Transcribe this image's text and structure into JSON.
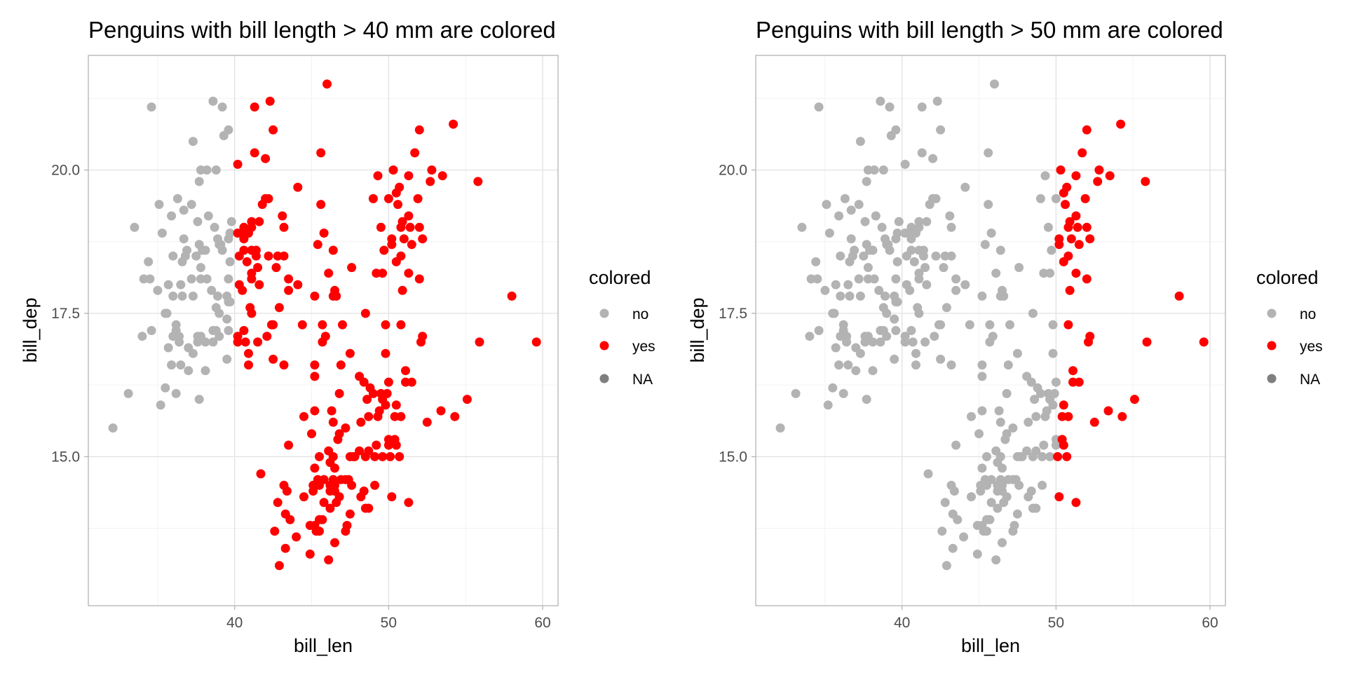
{
  "chart_data": [
    {
      "type": "scatter",
      "title": "Penguins with bill length > 40 mm are colored",
      "xlabel": "bill_len",
      "ylabel": "bill_dep",
      "xlim": [
        30.5,
        61
      ],
      "ylim": [
        12.4,
        22
      ],
      "x_ticks": [
        40,
        50,
        60
      ],
      "y_ticks": [
        15.0,
        17.5,
        20.0
      ],
      "x_tick_labels": [
        "40",
        "50",
        "60"
      ],
      "y_tick_labels": [
        "15.0",
        "17.5",
        "20.0"
      ],
      "grid": true,
      "legend": {
        "title": "colored",
        "position": "right",
        "entries": [
          {
            "label": "no",
            "color": "#b3b3b3"
          },
          {
            "label": "yes",
            "color": "#ff0000"
          },
          {
            "label": "NA",
            "color": "#7f7f7f"
          }
        ]
      },
      "threshold": 40,
      "colors": {
        "no": "#b3b3b3",
        "yes": "#ff0000"
      },
      "points": [
        [
          32.1,
          15.5
        ],
        [
          33.1,
          16.1
        ],
        [
          33.5,
          19.0
        ],
        [
          34.0,
          17.1
        ],
        [
          34.1,
          18.1
        ],
        [
          34.4,
          18.4
        ],
        [
          34.5,
          18.1
        ],
        [
          34.6,
          17.2
        ],
        [
          34.6,
          21.1
        ],
        [
          35.0,
          17.9
        ],
        [
          35.1,
          19.4
        ],
        [
          35.2,
          15.9
        ],
        [
          35.3,
          18.9
        ],
        [
          35.5,
          16.2
        ],
        [
          35.5,
          17.5
        ],
        [
          35.6,
          17.5
        ],
        [
          35.7,
          16.9
        ],
        [
          35.7,
          18.0
        ],
        [
          35.9,
          16.6
        ],
        [
          35.9,
          19.2
        ],
        [
          36.0,
          17.1
        ],
        [
          36.0,
          17.8
        ],
        [
          36.0,
          18.5
        ],
        [
          36.2,
          16.1
        ],
        [
          36.2,
          17.2
        ],
        [
          36.2,
          17.3
        ],
        [
          36.3,
          19.5
        ],
        [
          36.4,
          17.0
        ],
        [
          36.4,
          17.1
        ],
        [
          36.5,
          16.6
        ],
        [
          36.5,
          18.0
        ],
        [
          36.6,
          17.8
        ],
        [
          36.6,
          18.4
        ],
        [
          36.7,
          18.8
        ],
        [
          36.7,
          19.3
        ],
        [
          36.8,
          18.5
        ],
        [
          36.9,
          18.6
        ],
        [
          37.0,
          16.5
        ],
        [
          37.0,
          16.9
        ],
        [
          37.2,
          18.1
        ],
        [
          37.2,
          19.4
        ],
        [
          37.3,
          16.8
        ],
        [
          37.3,
          17.8
        ],
        [
          37.3,
          20.5
        ],
        [
          37.5,
          18.5
        ],
        [
          37.6,
          17.0
        ],
        [
          37.6,
          17.1
        ],
        [
          37.6,
          19.1
        ],
        [
          37.7,
          16.0
        ],
        [
          37.7,
          18.7
        ],
        [
          37.7,
          19.8
        ],
        [
          37.8,
          17.1
        ],
        [
          37.8,
          18.1
        ],
        [
          37.8,
          18.3
        ],
        [
          37.8,
          20.0
        ],
        [
          37.9,
          18.6
        ],
        [
          38.1,
          16.5
        ],
        [
          38.1,
          17.0
        ],
        [
          38.1,
          18.6
        ],
        [
          38.2,
          18.1
        ],
        [
          38.2,
          20.0
        ],
        [
          38.3,
          19.2
        ],
        [
          38.5,
          17.9
        ],
        [
          38.6,
          17.0
        ],
        [
          38.6,
          17.2
        ],
        [
          38.6,
          21.2
        ],
        [
          38.7,
          19.0
        ],
        [
          38.8,
          17.2
        ],
        [
          38.8,
          17.6
        ],
        [
          38.8,
          20.0
        ],
        [
          38.9,
          17.8
        ],
        [
          38.9,
          18.8
        ],
        [
          39.0,
          17.1
        ],
        [
          39.0,
          17.5
        ],
        [
          39.0,
          18.7
        ],
        [
          39.1,
          18.7
        ],
        [
          39.2,
          18.6
        ],
        [
          39.2,
          21.1
        ],
        [
          39.3,
          20.6
        ],
        [
          39.5,
          16.7
        ],
        [
          39.5,
          17.4
        ],
        [
          39.5,
          17.8
        ],
        [
          39.6,
          17.2
        ],
        [
          39.6,
          17.7
        ],
        [
          39.6,
          18.1
        ],
        [
          39.6,
          18.8
        ],
        [
          39.6,
          20.7
        ],
        [
          39.7,
          17.7
        ],
        [
          39.7,
          18.4
        ],
        [
          39.7,
          18.9
        ],
        [
          39.8,
          19.1
        ],
        [
          40.2,
          17.0
        ],
        [
          40.2,
          17.1
        ],
        [
          40.2,
          18.9
        ],
        [
          40.2,
          20.1
        ],
        [
          40.3,
          18.0
        ],
        [
          40.3,
          18.5
        ],
        [
          40.5,
          17.9
        ],
        [
          40.5,
          18.9
        ],
        [
          40.6,
          17.2
        ],
        [
          40.6,
          18.6
        ],
        [
          40.6,
          18.8
        ],
        [
          40.6,
          19.0
        ],
        [
          40.7,
          17.0
        ],
        [
          40.8,
          18.4
        ],
        [
          40.8,
          18.9
        ],
        [
          40.9,
          16.6
        ],
        [
          40.9,
          16.8
        ],
        [
          40.9,
          18.9
        ],
        [
          41.0,
          17.6
        ],
        [
          41.1,
          17.5
        ],
        [
          41.1,
          18.1
        ],
        [
          41.1,
          18.2
        ],
        [
          41.1,
          18.6
        ],
        [
          41.1,
          19.0
        ],
        [
          41.1,
          19.1
        ],
        [
          41.3,
          20.3
        ],
        [
          41.3,
          21.1
        ],
        [
          41.4,
          18.5
        ],
        [
          41.4,
          18.6
        ],
        [
          41.5,
          17.0
        ],
        [
          41.5,
          18.3
        ],
        [
          41.6,
          18.0
        ],
        [
          41.6,
          19.1
        ],
        [
          41.7,
          14.7
        ],
        [
          41.8,
          19.4
        ],
        [
          42.0,
          19.5
        ],
        [
          42.0,
          20.2
        ],
        [
          42.1,
          17.1
        ],
        [
          42.2,
          18.5
        ],
        [
          42.2,
          19.5
        ],
        [
          42.3,
          21.2
        ],
        [
          42.4,
          17.3
        ],
        [
          42.5,
          16.7
        ],
        [
          42.5,
          17.3
        ],
        [
          42.5,
          20.7
        ],
        [
          42.6,
          13.7
        ],
        [
          42.7,
          18.3
        ],
        [
          42.8,
          14.2
        ],
        [
          42.8,
          18.5
        ],
        [
          42.9,
          13.1
        ],
        [
          42.9,
          17.6
        ],
        [
          43.1,
          19.2
        ],
        [
          43.2,
          14.5
        ],
        [
          43.2,
          16.6
        ],
        [
          43.2,
          18.5
        ],
        [
          43.2,
          19.0
        ],
        [
          43.3,
          13.4
        ],
        [
          43.3,
          14.0
        ],
        [
          43.4,
          14.4
        ],
        [
          43.5,
          15.2
        ],
        [
          43.5,
          17.9
        ],
        [
          43.5,
          18.1
        ],
        [
          43.6,
          13.9
        ],
        [
          44.0,
          13.6
        ],
        [
          44.1,
          18.0
        ],
        [
          44.1,
          19.7
        ],
        [
          44.4,
          17.3
        ],
        [
          44.5,
          14.3
        ],
        [
          44.5,
          15.7
        ],
        [
          44.9,
          13.3
        ],
        [
          44.9,
          13.8
        ],
        [
          45.0,
          15.4
        ],
        [
          45.1,
          14.4
        ],
        [
          45.1,
          14.5
        ],
        [
          45.2,
          13.8
        ],
        [
          45.2,
          14.8
        ],
        [
          45.2,
          15.8
        ],
        [
          45.2,
          16.4
        ],
        [
          45.2,
          16.6
        ],
        [
          45.2,
          17.8
        ],
        [
          45.3,
          13.7
        ],
        [
          45.4,
          14.6
        ],
        [
          45.4,
          18.7
        ],
        [
          45.5,
          13.7
        ],
        [
          45.5,
          13.9
        ],
        [
          45.5,
          14.5
        ],
        [
          45.5,
          15.0
        ],
        [
          45.6,
          19.4
        ],
        [
          45.6,
          20.3
        ],
        [
          45.7,
          13.9
        ],
        [
          45.7,
          17.0
        ],
        [
          45.7,
          17.3
        ],
        [
          45.8,
          14.2
        ],
        [
          45.8,
          14.6
        ],
        [
          45.8,
          18.9
        ],
        [
          45.9,
          17.1
        ],
        [
          46.0,
          21.5
        ],
        [
          46.1,
          13.2
        ],
        [
          46.1,
          15.1
        ],
        [
          46.1,
          18.2
        ],
        [
          46.2,
          14.1
        ],
        [
          46.2,
          14.4
        ],
        [
          46.2,
          14.5
        ],
        [
          46.2,
          14.9
        ],
        [
          46.3,
          15.8
        ],
        [
          46.4,
          14.6
        ],
        [
          46.4,
          15.0
        ],
        [
          46.4,
          15.6
        ],
        [
          46.4,
          17.8
        ],
        [
          46.4,
          18.6
        ],
        [
          46.5,
          13.5
        ],
        [
          46.5,
          14.4
        ],
        [
          46.5,
          14.5
        ],
        [
          46.5,
          14.8
        ],
        [
          46.5,
          17.9
        ],
        [
          46.6,
          14.2
        ],
        [
          46.6,
          17.8
        ],
        [
          46.7,
          15.3
        ],
        [
          46.8,
          14.3
        ],
        [
          46.8,
          15.4
        ],
        [
          46.8,
          16.1
        ],
        [
          46.9,
          14.6
        ],
        [
          46.9,
          16.6
        ],
        [
          47.0,
          17.3
        ],
        [
          47.2,
          13.7
        ],
        [
          47.2,
          14.6
        ],
        [
          47.2,
          15.5
        ],
        [
          47.3,
          13.8
        ],
        [
          47.4,
          14.6
        ],
        [
          47.5,
          14.0
        ],
        [
          47.5,
          15.0
        ],
        [
          47.5,
          16.8
        ],
        [
          47.6,
          14.5
        ],
        [
          47.6,
          18.3
        ],
        [
          47.7,
          15.0
        ],
        [
          47.8,
          15.0
        ],
        [
          48.1,
          15.1
        ],
        [
          48.1,
          16.4
        ],
        [
          48.2,
          14.3
        ],
        [
          48.2,
          15.6
        ],
        [
          48.4,
          14.4
        ],
        [
          48.4,
          16.3
        ],
        [
          48.5,
          14.1
        ],
        [
          48.5,
          15.0
        ],
        [
          48.5,
          17.5
        ],
        [
          48.6,
          16.0
        ],
        [
          48.7,
          14.1
        ],
        [
          48.7,
          15.1
        ],
        [
          48.7,
          15.7
        ],
        [
          48.8,
          16.2
        ],
        [
          49.0,
          16.1
        ],
        [
          49.0,
          19.5
        ],
        [
          49.1,
          14.5
        ],
        [
          49.1,
          15.0
        ],
        [
          49.2,
          15.2
        ],
        [
          49.2,
          18.2
        ],
        [
          49.3,
          15.7
        ],
        [
          49.3,
          19.9
        ],
        [
          49.4,
          15.8
        ],
        [
          49.5,
          16.1
        ],
        [
          49.5,
          19.0
        ],
        [
          49.6,
          15.0
        ],
        [
          49.6,
          16.0
        ],
        [
          49.6,
          18.2
        ],
        [
          49.7,
          18.6
        ],
        [
          49.8,
          15.9
        ],
        [
          49.8,
          16.8
        ],
        [
          49.8,
          17.3
        ],
        [
          49.9,
          16.1
        ],
        [
          50.0,
          15.2
        ],
        [
          50.0,
          15.3
        ],
        [
          50.0,
          16.3
        ],
        [
          50.0,
          19.5
        ],
        [
          50.1,
          15.0
        ],
        [
          50.2,
          14.3
        ],
        [
          50.2,
          18.7
        ],
        [
          50.2,
          18.8
        ],
        [
          50.3,
          20.0
        ],
        [
          50.4,
          15.3
        ],
        [
          50.4,
          15.7
        ],
        [
          50.5,
          15.2
        ],
        [
          50.5,
          15.9
        ],
        [
          50.5,
          18.4
        ],
        [
          50.5,
          19.6
        ],
        [
          50.6,
          19.4
        ],
        [
          50.7,
          15.0
        ],
        [
          50.7,
          19.7
        ],
        [
          50.8,
          15.7
        ],
        [
          50.8,
          17.3
        ],
        [
          50.8,
          18.5
        ],
        [
          50.8,
          19.0
        ],
        [
          50.9,
          17.9
        ],
        [
          50.9,
          19.1
        ],
        [
          51.0,
          18.8
        ],
        [
          51.1,
          16.3
        ],
        [
          51.1,
          16.5
        ],
        [
          51.3,
          14.2
        ],
        [
          51.3,
          18.2
        ],
        [
          51.3,
          19.2
        ],
        [
          51.3,
          19.9
        ],
        [
          51.4,
          19.0
        ],
        [
          51.5,
          16.3
        ],
        [
          51.5,
          18.7
        ],
        [
          51.7,
          20.3
        ],
        [
          51.9,
          19.5
        ],
        [
          52.0,
          18.1
        ],
        [
          52.0,
          19.0
        ],
        [
          52.0,
          20.7
        ],
        [
          52.1,
          17.0
        ],
        [
          52.2,
          17.1
        ],
        [
          52.2,
          18.8
        ],
        [
          52.5,
          15.6
        ],
        [
          52.7,
          19.8
        ],
        [
          52.8,
          20.0
        ],
        [
          53.4,
          15.8
        ],
        [
          53.5,
          19.9
        ],
        [
          54.2,
          20.8
        ],
        [
          54.3,
          15.7
        ],
        [
          55.1,
          16.0
        ],
        [
          55.8,
          19.8
        ],
        [
          55.9,
          17.0
        ],
        [
          58.0,
          17.8
        ],
        [
          59.6,
          17.0
        ]
      ]
    },
    {
      "type": "scatter",
      "title": "Penguins with bill length > 50 mm are colored",
      "xlabel": "bill_len",
      "ylabel": "bill_dep",
      "xlim": [
        30.5,
        61
      ],
      "ylim": [
        12.4,
        22
      ],
      "x_ticks": [
        40,
        50,
        60
      ],
      "y_ticks": [
        15.0,
        17.5,
        20.0
      ],
      "x_tick_labels": [
        "40",
        "50",
        "60"
      ],
      "y_tick_labels": [
        "15.0",
        "17.5",
        "20.0"
      ],
      "grid": true,
      "legend": {
        "title": "colored",
        "position": "right",
        "entries": [
          {
            "label": "no",
            "color": "#b3b3b3"
          },
          {
            "label": "yes",
            "color": "#ff0000"
          },
          {
            "label": "NA",
            "color": "#7f7f7f"
          }
        ]
      },
      "threshold": 50,
      "colors": {
        "no": "#b3b3b3",
        "yes": "#ff0000"
      },
      "points": "same as chart 1"
    }
  ]
}
